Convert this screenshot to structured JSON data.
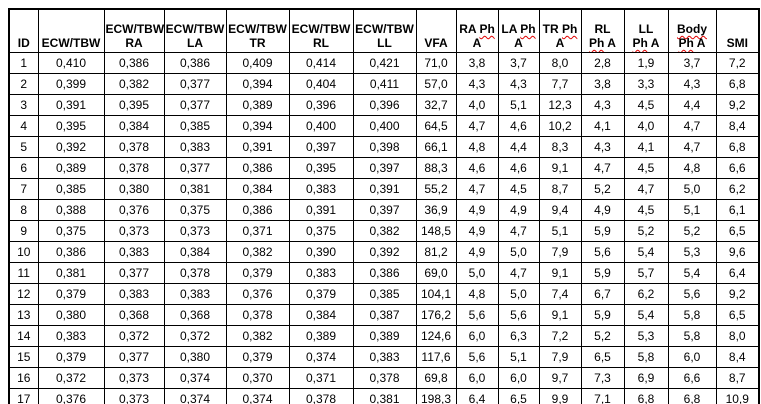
{
  "colors": {
    "background": "#ffffff",
    "border": "#000000",
    "text": "#000000",
    "spellcheck_underline": "#e00000"
  },
  "table": {
    "columns": [
      {
        "key": "id",
        "lines": [
          [
            {
              "text": "ID",
              "wavy": false
            }
          ]
        ]
      },
      {
        "key": "ecw_tbw",
        "lines": [
          [
            {
              "text": "ECW/TBW",
              "wavy": false
            }
          ]
        ]
      },
      {
        "key": "ecw_tbw_ra",
        "lines": [
          [
            {
              "text": "ECW/TBW",
              "wavy": false
            }
          ],
          [
            {
              "text": "RA",
              "wavy": false
            }
          ]
        ]
      },
      {
        "key": "ecw_tbw_la",
        "lines": [
          [
            {
              "text": "ECW/TBW",
              "wavy": false
            }
          ],
          [
            {
              "text": "LA",
              "wavy": false
            }
          ]
        ]
      },
      {
        "key": "ecw_tbw_tr",
        "lines": [
          [
            {
              "text": "ECW/TBW",
              "wavy": false
            }
          ],
          [
            {
              "text": "TR",
              "wavy": false
            }
          ]
        ]
      },
      {
        "key": "ecw_tbw_rl",
        "lines": [
          [
            {
              "text": "ECW/TBW",
              "wavy": false
            }
          ],
          [
            {
              "text": "RL",
              "wavy": false
            }
          ]
        ]
      },
      {
        "key": "ecw_tbw_ll",
        "lines": [
          [
            {
              "text": "ECW/TBW",
              "wavy": false
            }
          ],
          [
            {
              "text": "LL",
              "wavy": false
            }
          ]
        ]
      },
      {
        "key": "vfa",
        "lines": [
          [
            {
              "text": "VFA",
              "wavy": false
            }
          ]
        ]
      },
      {
        "key": "ra_ph_a",
        "lines": [
          [
            {
              "text": "RA ",
              "wavy": false
            },
            {
              "text": "Ph",
              "wavy": true
            }
          ],
          [
            {
              "text": "A",
              "wavy": false
            }
          ]
        ]
      },
      {
        "key": "la_ph_a",
        "lines": [
          [
            {
              "text": "LA ",
              "wavy": false
            },
            {
              "text": "Ph",
              "wavy": true
            }
          ],
          [
            {
              "text": "A",
              "wavy": false
            }
          ]
        ]
      },
      {
        "key": "tr_ph_a",
        "lines": [
          [
            {
              "text": "TR ",
              "wavy": false
            },
            {
              "text": "Ph",
              "wavy": true
            }
          ],
          [
            {
              "text": "A",
              "wavy": false
            }
          ]
        ]
      },
      {
        "key": "rl_ph_a",
        "lines": [
          [
            {
              "text": "RL",
              "wavy": false
            }
          ],
          [
            {
              "text": "Ph",
              "wavy": true
            },
            {
              "text": " A",
              "wavy": false
            }
          ]
        ]
      },
      {
        "key": "ll_ph_a",
        "lines": [
          [
            {
              "text": "LL",
              "wavy": false
            }
          ],
          [
            {
              "text": "Ph",
              "wavy": true
            },
            {
              "text": " A",
              "wavy": false
            }
          ]
        ]
      },
      {
        "key": "body_ph_a",
        "lines": [
          [
            {
              "text": "Body",
              "wavy": true
            }
          ],
          [
            {
              "text": "Ph",
              "wavy": true
            },
            {
              "text": " A",
              "wavy": false
            }
          ]
        ]
      },
      {
        "key": "smi",
        "lines": [
          [
            {
              "text": "SMI",
              "wavy": false
            }
          ]
        ]
      }
    ],
    "rows": [
      [
        "1",
        "0,410",
        "0,386",
        "0,386",
        "0,409",
        "0,414",
        "0,421",
        "71,0",
        "3,8",
        "3,7",
        "8,0",
        "2,8",
        "1,9",
        "3,7",
        "7,2"
      ],
      [
        "2",
        "0,399",
        "0,382",
        "0,377",
        "0,394",
        "0,404",
        "0,411",
        "57,0",
        "4,3",
        "4,3",
        "7,7",
        "3,8",
        "3,3",
        "4,3",
        "6,8"
      ],
      [
        "3",
        "0,391",
        "0,395",
        "0,377",
        "0,389",
        "0,396",
        "0,396",
        "32,7",
        "4,0",
        "5,1",
        "12,3",
        "4,3",
        "4,5",
        "4,4",
        "9,2"
      ],
      [
        "4",
        "0,395",
        "0,384",
        "0,385",
        "0,394",
        "0,400",
        "0,400",
        "64,5",
        "4,7",
        "4,6",
        "10,2",
        "4,1",
        "4,0",
        "4,7",
        "8,4"
      ],
      [
        "5",
        "0,392",
        "0,378",
        "0,383",
        "0,391",
        "0,397",
        "0,398",
        "66,1",
        "4,8",
        "4,4",
        "8,3",
        "4,3",
        "4,1",
        "4,7",
        "6,8"
      ],
      [
        "6",
        "0,389",
        "0,378",
        "0,377",
        "0,386",
        "0,395",
        "0,397",
        "88,3",
        "4,6",
        "4,6",
        "9,1",
        "4,7",
        "4,5",
        "4,8",
        "6,6"
      ],
      [
        "7",
        "0,385",
        "0,380",
        "0,381",
        "0,384",
        "0,383",
        "0,391",
        "55,2",
        "4,7",
        "4,5",
        "8,7",
        "5,2",
        "4,7",
        "5,0",
        "6,2"
      ],
      [
        "8",
        "0,388",
        "0,376",
        "0,375",
        "0,386",
        "0,391",
        "0,397",
        "36,9",
        "4,9",
        "4,9",
        "9,4",
        "4,9",
        "4,5",
        "5,1",
        "6,1"
      ],
      [
        "9",
        "0,375",
        "0,373",
        "0,373",
        "0,371",
        "0,375",
        "0,382",
        "148,5",
        "4,9",
        "4,7",
        "5,1",
        "5,9",
        "5,2",
        "5,2",
        "6,5"
      ],
      [
        "10",
        "0,386",
        "0,383",
        "0,384",
        "0,382",
        "0,390",
        "0,392",
        "81,2",
        "4,9",
        "5,0",
        "7,9",
        "5,6",
        "5,4",
        "5,3",
        "9,6"
      ],
      [
        "11",
        "0,381",
        "0,377",
        "0,378",
        "0,379",
        "0,383",
        "0,386",
        "69,0",
        "5,0",
        "4,7",
        "9,1",
        "5,9",
        "5,7",
        "5,4",
        "6,4"
      ],
      [
        "12",
        "0,379",
        "0,383",
        "0,383",
        "0,376",
        "0,379",
        "0,385",
        "104,1",
        "4,8",
        "5,0",
        "7,4",
        "6,7",
        "6,2",
        "5,6",
        "9,2"
      ],
      [
        "13",
        "0,380",
        "0,368",
        "0,368",
        "0,378",
        "0,384",
        "0,387",
        "176,2",
        "5,6",
        "5,6",
        "9,1",
        "5,9",
        "5,4",
        "5,8",
        "6,5"
      ],
      [
        "14",
        "0,383",
        "0,372",
        "0,372",
        "0,382",
        "0,389",
        "0,389",
        "124,6",
        "6,0",
        "6,3",
        "7,2",
        "5,2",
        "5,3",
        "5,8",
        "8,0"
      ],
      [
        "15",
        "0,379",
        "0,377",
        "0,380",
        "0,379",
        "0,374",
        "0,383",
        "117,6",
        "5,6",
        "5,1",
        "7,9",
        "6,5",
        "5,8",
        "6,0",
        "8,4"
      ],
      [
        "16",
        "0,372",
        "0,373",
        "0,374",
        "0,370",
        "0,371",
        "0,378",
        "69,8",
        "6,0",
        "6,0",
        "9,7",
        "7,3",
        "6,9",
        "6,6",
        "8,7"
      ],
      [
        "17",
        "0,376",
        "0,373",
        "0,374",
        "0,374",
        "0,378",
        "0,381",
        "198,3",
        "6,4",
        "6,5",
        "9,9",
        "7,1",
        "6,8",
        "6,8",
        "10,9"
      ]
    ]
  }
}
